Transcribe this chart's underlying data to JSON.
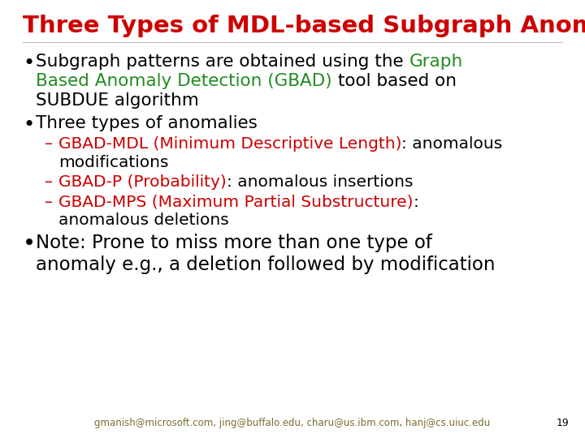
{
  "title": "Three Types of MDL-based Subgraph Anomalies",
  "title_color": "#cc0000",
  "title_fontsize": 21,
  "background_color": "#ffffff",
  "footer_text": "gmanish@microsoft.com, jing@buffalo.edu, charu@us.ibm.com, hanj@cs.uiuc.edu",
  "footer_number": "19",
  "footer_color": "#7B6B30",
  "black": "#000000",
  "green": "#228B22",
  "red": "#cc0000",
  "bullet_fs": 15.5,
  "sub_fs": 14.5,
  "footer_fs": 8.5
}
